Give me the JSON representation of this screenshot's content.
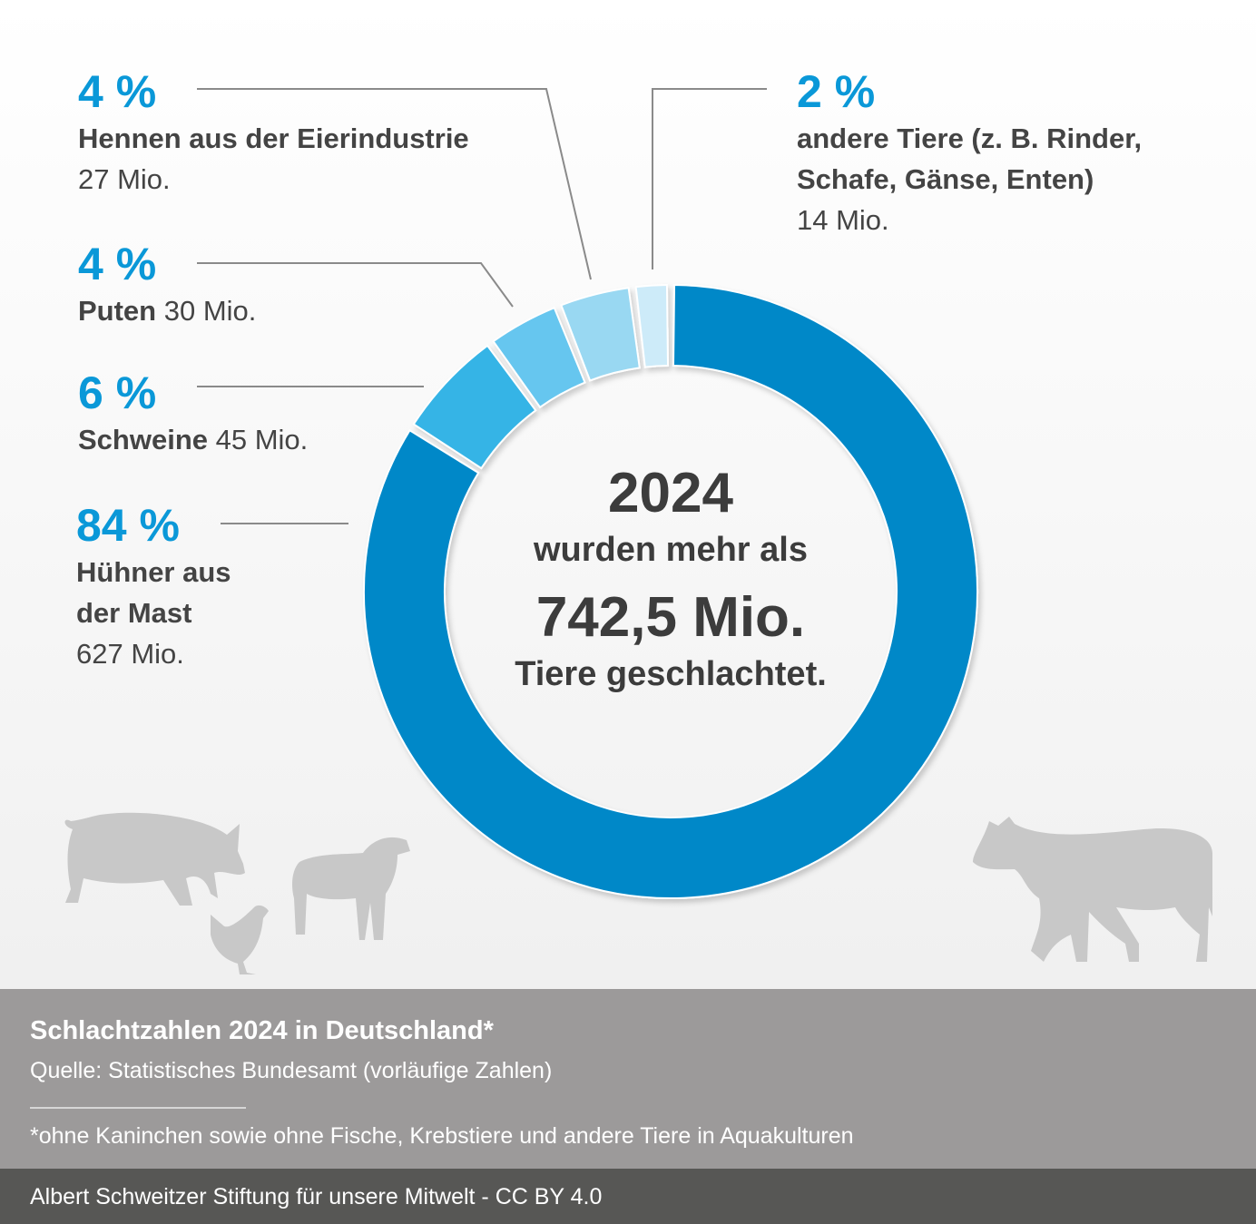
{
  "chart_data": {
    "type": "pie",
    "donut": true,
    "title": "Schlachtzahlen 2024 in Deutschland*",
    "slices": [
      {
        "label": "Hühner aus der Mast",
        "percent": 84,
        "value": "627 Mio.",
        "pct_label": "84 %",
        "color": "#0088c8"
      },
      {
        "label": "Schweine",
        "percent": 6,
        "value": "45 Mio.",
        "pct_label": "6 %",
        "color": "#35b4e6"
      },
      {
        "label": "Puten",
        "percent": 4,
        "value": "30 Mio.",
        "pct_label": "4 %",
        "color": "#66c6ef"
      },
      {
        "label": "Hennen aus der Eierindustrie",
        "percent": 4,
        "value": "27 Mio.",
        "pct_label": "4 %",
        "color": "#99d8f2"
      },
      {
        "label": "andere Tiere (z. B. Rinder, Schafe, Gänse, Enten)",
        "percent": 2,
        "value": "14 Mio.",
        "pct_label": "2 %",
        "color": "#cdebf9"
      }
    ]
  },
  "labels": {
    "huehner_1": "Hühner aus",
    "huehner_2": "der Mast",
    "andere_1": "andere Tiere (z. B. Rinder,",
    "andere_2": "Schafe, Gänse, Enten)"
  },
  "center": {
    "year": "2024",
    "line1": "wurden mehr als",
    "total": "742,5 Mio.",
    "line2": "Tiere geschlachtet."
  },
  "footer": {
    "title": "Schlachtzahlen 2024 in Deutschland*",
    "source": "Quelle: Statistisches Bundesamt (vorläufige Zahlen)",
    "note": "*ohne Kaninchen sowie ohne Fische, Krebstiere und andere Tiere in Aquakulturen",
    "credit": "Albert Schweitzer Stiftung für unsere Mitwelt - CC BY 4.0"
  },
  "icons": [
    "pig-icon",
    "chicken-icon",
    "sheep-icon",
    "cow-icon"
  ]
}
